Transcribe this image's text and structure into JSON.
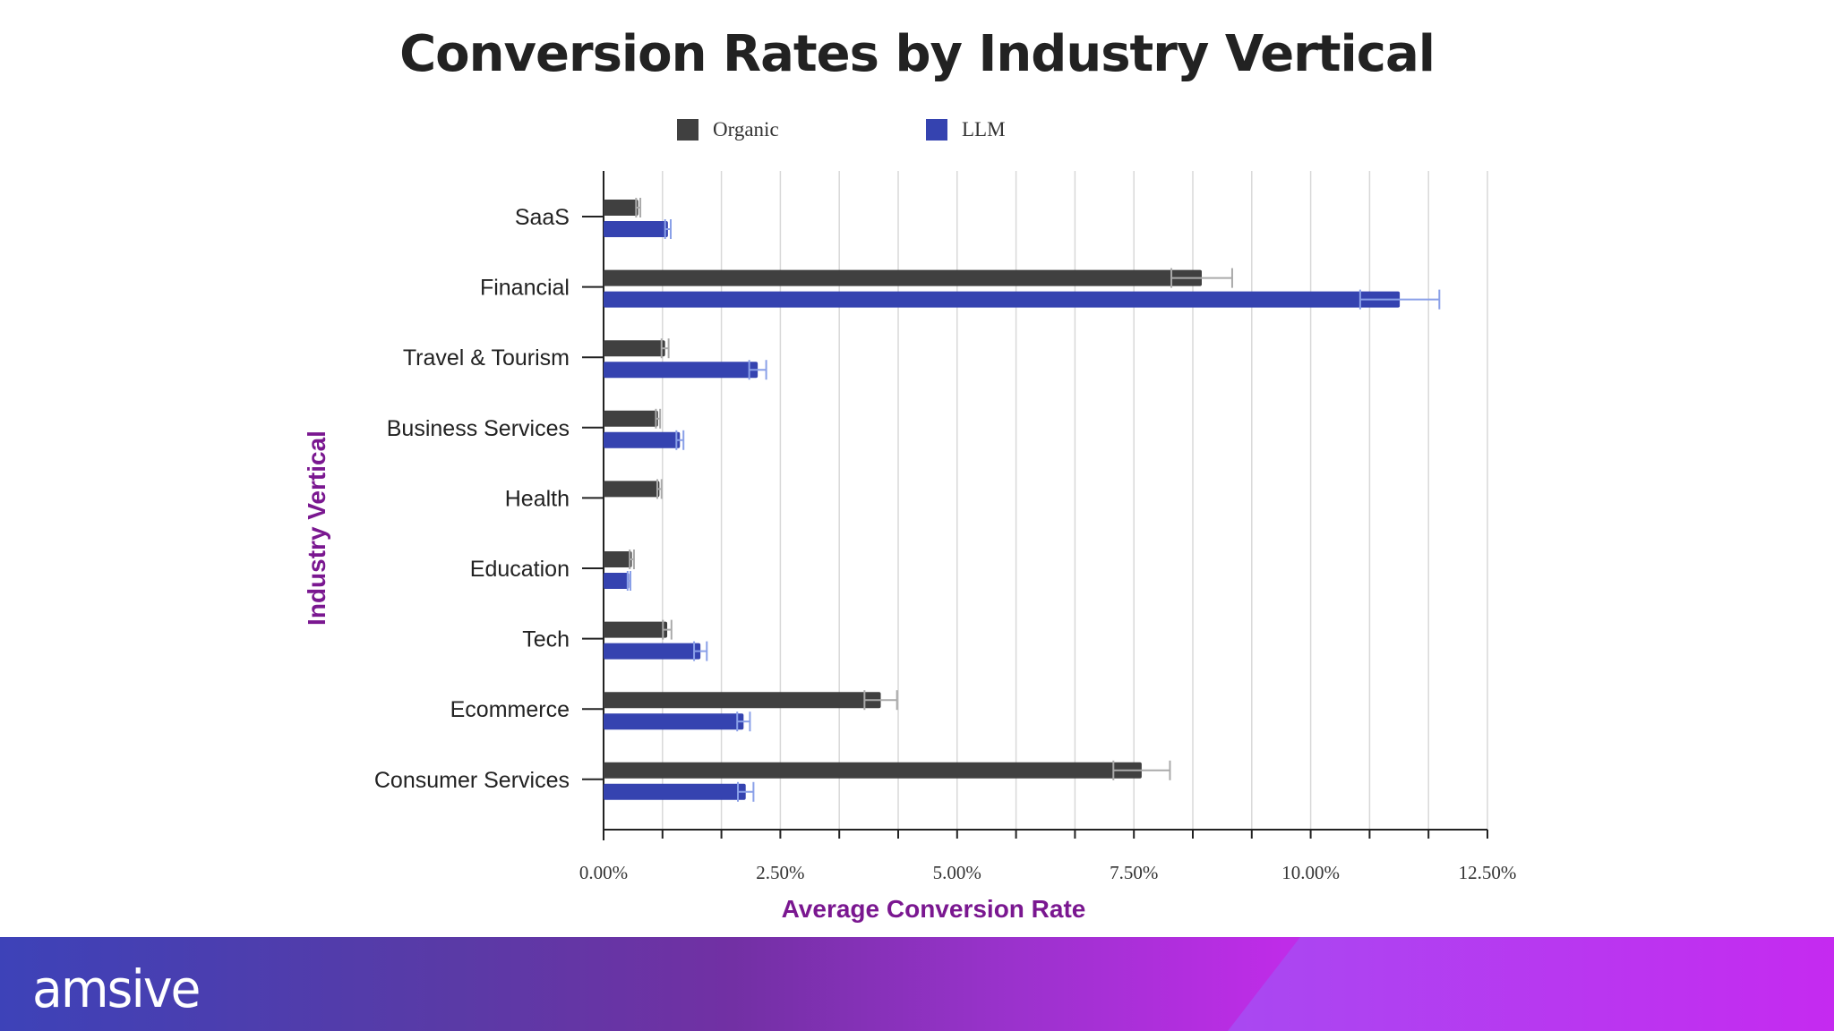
{
  "slide": {
    "title": "Conversion Rates by Industry Vertical",
    "logo_text": "amsive"
  },
  "colors": {
    "organic": "#404040",
    "llm": "#3543b0",
    "axis_label": "#7a1790",
    "grid": "#d8d8d8"
  },
  "chart_data": {
    "type": "bar",
    "orientation": "horizontal",
    "title": "Conversion Rates by Industry Vertical",
    "xlabel": "Average Conversion Rate",
    "ylabel": "Industry Vertical",
    "xlim": [
      0,
      12.5
    ],
    "x_ticks": [
      "0.00%",
      "2.50%",
      "5.00%",
      "7.50%",
      "10.00%",
      "12.50%"
    ],
    "x_tick_values": [
      0,
      2.5,
      5,
      7.5,
      10,
      12.5
    ],
    "grid": true,
    "legend_position": "top",
    "categories": [
      "SaaS",
      "Financial",
      "Travel & Tourism",
      "Business Services",
      "Health",
      "Education",
      "Tech",
      "Ecommerce",
      "Consumer Services"
    ],
    "series": [
      {
        "name": "Organic",
        "values": [
          0.49,
          8.46,
          0.87,
          0.77,
          0.79,
          0.4,
          0.9,
          3.92,
          7.61
        ],
        "error": [
          0.03,
          0.43,
          0.05,
          0.03,
          0.03,
          0.03,
          0.06,
          0.23,
          0.4
        ]
      },
      {
        "name": "LLM",
        "values": [
          0.91,
          11.26,
          2.18,
          1.08,
          0.0,
          0.36,
          1.37,
          1.98,
          2.01
        ],
        "error": [
          0.04,
          0.56,
          0.12,
          0.05,
          0.0,
          0.02,
          0.09,
          0.09,
          0.11
        ]
      }
    ]
  }
}
